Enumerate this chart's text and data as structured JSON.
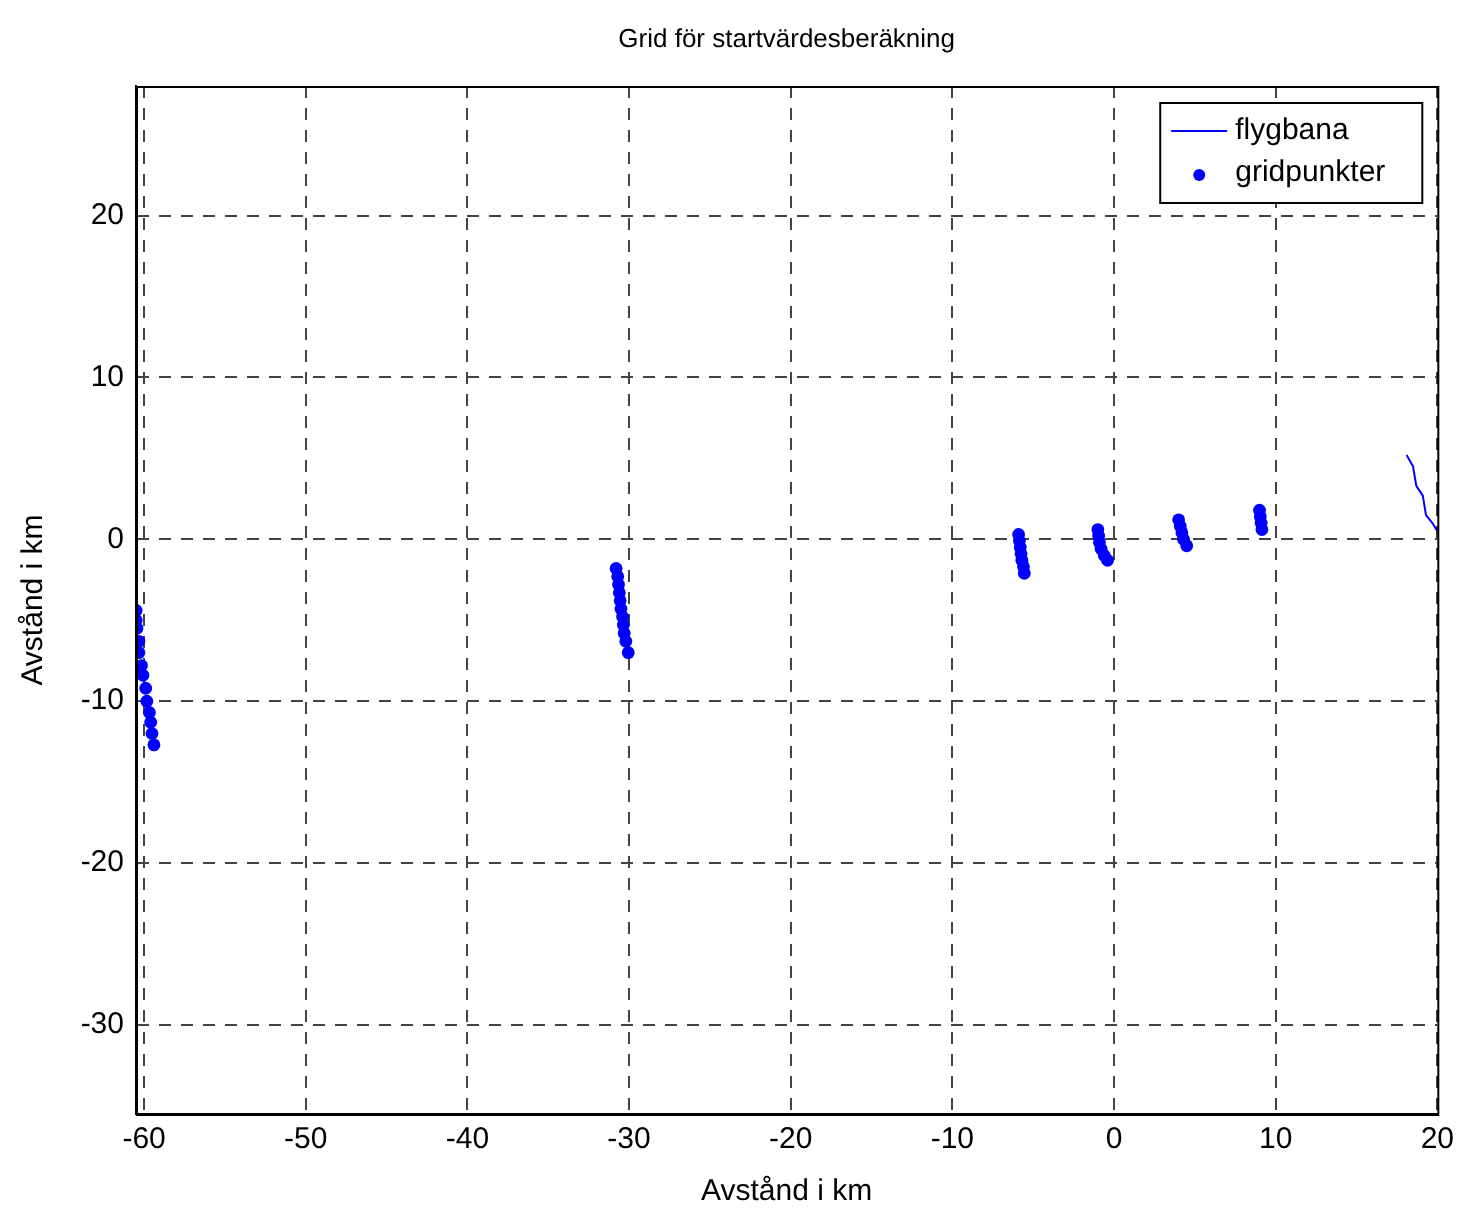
{
  "chart_data": {
    "type": "scatter",
    "title": "Grid för startvärdesberäkning",
    "xlabel": "Avstånd i km",
    "ylabel": "Avstånd i km",
    "xlim": [
      -60.5,
      20
    ],
    "ylim": [
      -35.5,
      28
    ],
    "xticks": [
      -60,
      -50,
      -40,
      -30,
      -20,
      -10,
      0,
      10,
      20
    ],
    "yticks": [
      -30,
      -20,
      -10,
      0,
      10,
      20
    ],
    "grid": true,
    "legend": "top right",
    "series": [
      {
        "name": "flygbana",
        "type": "line",
        "marker": "none",
        "color": "#0000ff",
        "x": [
          18.1,
          18.5,
          18.7,
          19.1,
          19.3,
          19.7,
          20
        ],
        "values": [
          5.2,
          4.5,
          3.3,
          2.7,
          1.5,
          1.0,
          0.5
        ]
      },
      {
        "name": "gridpunkter",
        "type": "scatter",
        "marker": "circle",
        "color": "#0000ff",
        "x": [
          -60.49,
          -60.49,
          -60.44,
          -60.32,
          -60.32,
          -60.16,
          -60.07,
          -59.9,
          -59.83,
          -59.67,
          -59.59,
          -59.51,
          -59.39,
          -30.8,
          -30.7,
          -30.65,
          -30.6,
          -30.55,
          -30.5,
          -30.4,
          -30.35,
          -30.3,
          -30.2,
          -30.05,
          -5.9,
          -5.85,
          -5.8,
          -5.75,
          -5.7,
          -5.6,
          -5.55,
          -1.0,
          -0.95,
          -0.9,
          -0.8,
          -0.6,
          -0.4,
          4.0,
          4.1,
          4.2,
          4.3,
          4.5,
          9.0,
          9.05,
          9.1,
          9.15
        ],
        "values": [
          -4.4,
          -5.0,
          -5.5,
          -6.3,
          -7.0,
          -7.8,
          -8.4,
          -9.2,
          -10.0,
          -10.7,
          -11.3,
          -12.0,
          -12.7,
          -1.8,
          -2.3,
          -2.8,
          -3.3,
          -3.8,
          -4.3,
          -4.8,
          -5.3,
          -5.8,
          -6.3,
          -7.0,
          0.3,
          -0.1,
          -0.5,
          -0.9,
          -1.3,
          -1.7,
          -2.1,
          0.6,
          0.2,
          -0.2,
          -0.6,
          -1.0,
          -1.3,
          1.2,
          0.8,
          0.4,
          0.0,
          -0.4,
          1.8,
          1.4,
          1.0,
          0.6
        ]
      }
    ]
  }
}
